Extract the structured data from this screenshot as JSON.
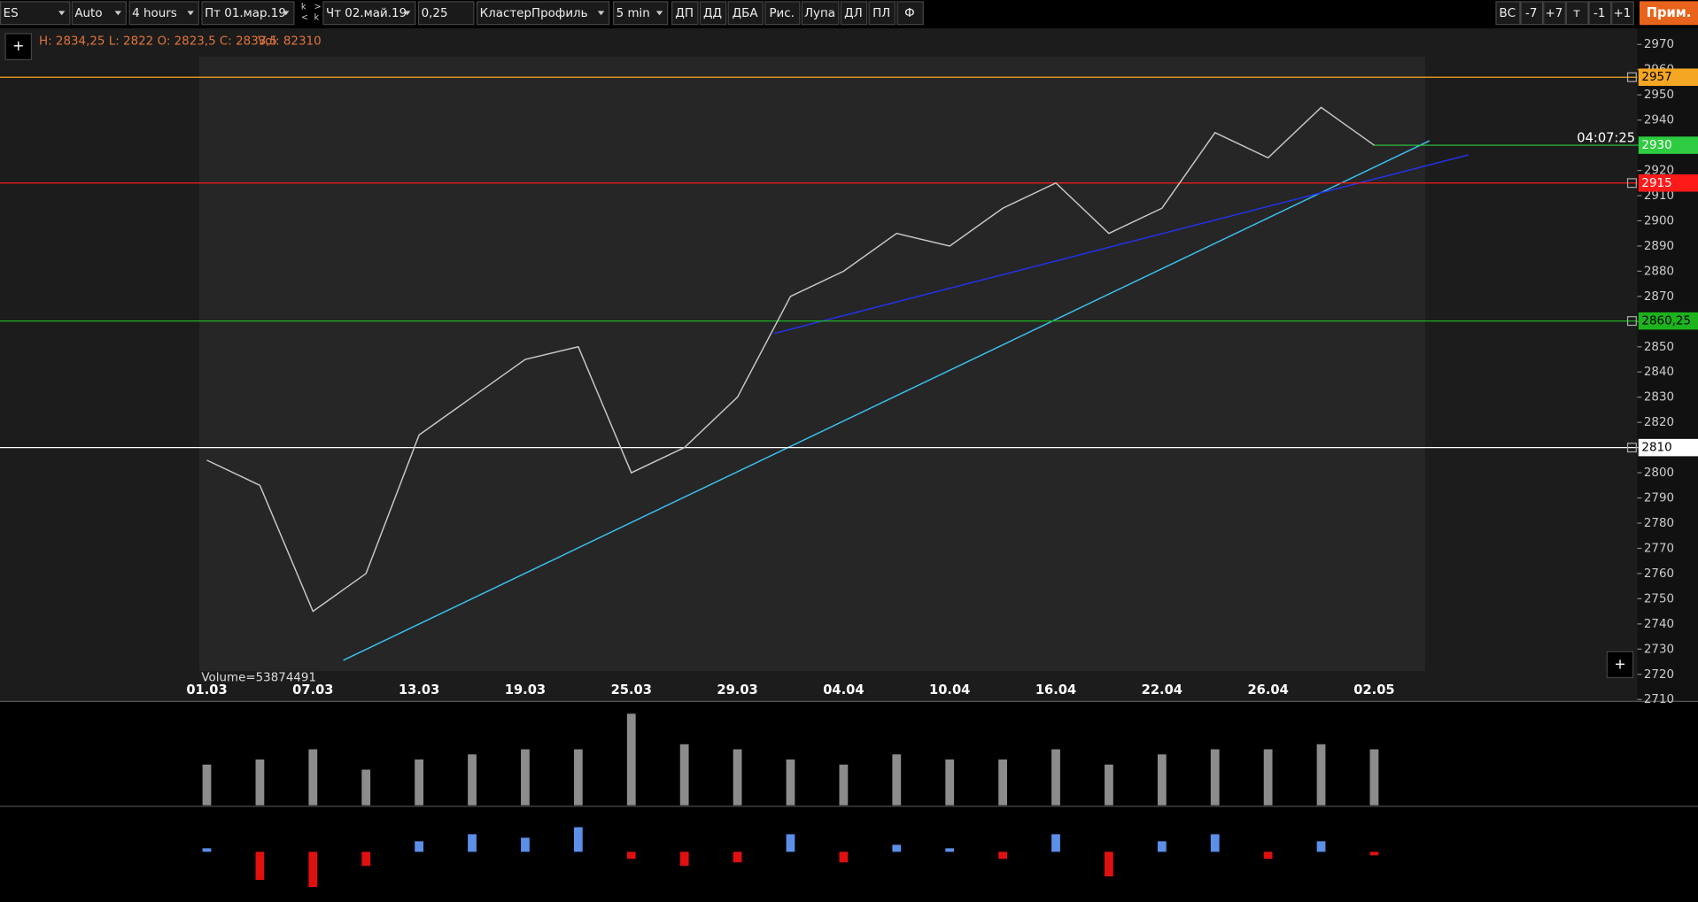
{
  "toolbar": {
    "symbol": "ES",
    "scale": "Auto",
    "period": "4 hours",
    "date_from": "Пт 01.мар.19",
    "nav": [
      "k",
      "<",
      ">",
      "k"
    ],
    "date_to": "Чт 02.май.19",
    "tick": "0,25",
    "chart_type": "КластерПрофиль",
    "interval": "5 min",
    "tools": [
      "ДП",
      "ДД",
      "ДБА",
      "Рис.",
      "Лупа",
      "ДЛ",
      "ПЛ",
      "Ф"
    ],
    "right_tools": [
      "ВС",
      "-7",
      "+7",
      "т",
      "-1",
      "+1"
    ],
    "notes_button": "Прим."
  },
  "info": {
    "ohlc": "H: 2834,25 L: 2822 O: 2823,5 C: 2833,5",
    "volume": "Vol: 82310",
    "add_buttons": [
      "+",
      "+"
    ]
  },
  "chart_data": {
    "type": "line",
    "categories": [
      "01.03",
      null,
      "07.03",
      null,
      "13.03",
      null,
      "19.03",
      null,
      "25.03",
      null,
      "29.03",
      null,
      "04.04",
      null,
      "10.04",
      null,
      "16.04",
      null,
      "22.04",
      null,
      "26.04",
      null,
      "02.05"
    ],
    "values": [
      2805,
      2795,
      2745,
      2760,
      2815,
      2830,
      2845,
      2850,
      2800,
      2810,
      2830,
      2870,
      2880,
      2895,
      2890,
      2905,
      2915,
      2895,
      2905,
      2935,
      2925,
      2945,
      2930
    ],
    "color": "#c8c8c8",
    "ylim": [
      2709,
      2976
    ],
    "yticks": [
      2710,
      2720,
      2730,
      2740,
      2750,
      2760,
      2770,
      2780,
      2790,
      2800,
      2810,
      2820,
      2830,
      2840,
      2850,
      2860,
      2870,
      2880,
      2890,
      2900,
      2910,
      2920,
      2930,
      2940,
      2950,
      2960,
      2970
    ],
    "levels": [
      {
        "value": 2957,
        "color": "#f5a623"
      },
      {
        "value": 2915,
        "color": "#ff1a1a"
      },
      {
        "value": 2860.25,
        "label": "2860,25",
        "color": "#1db31d"
      },
      {
        "value": 2810,
        "color": "#ffffff"
      }
    ],
    "last": 2930,
    "last_color": "#2ecc40",
    "timer": "04:07:25",
    "volume_label": "Volume=53874491",
    "volume_values": [
      40,
      45,
      55,
      35,
      45,
      50,
      55,
      55,
      90,
      60,
      55,
      45,
      40,
      50,
      45,
      45,
      55,
      40,
      50,
      55,
      55,
      60,
      55
    ],
    "volume_ylim": [
      0,
      100
    ],
    "volume_color": "#8c8c8c",
    "delta_values": [
      5,
      -40,
      -50,
      -20,
      15,
      25,
      20,
      35,
      -10,
      -20,
      -15,
      25,
      -15,
      10,
      5,
      -10,
      25,
      -35,
      15,
      25,
      -10,
      15,
      -5
    ],
    "delta_ylim": [
      -60,
      60
    ],
    "delta_up_color": "#5b8fe8",
    "delta_down_color": "#e01010"
  }
}
